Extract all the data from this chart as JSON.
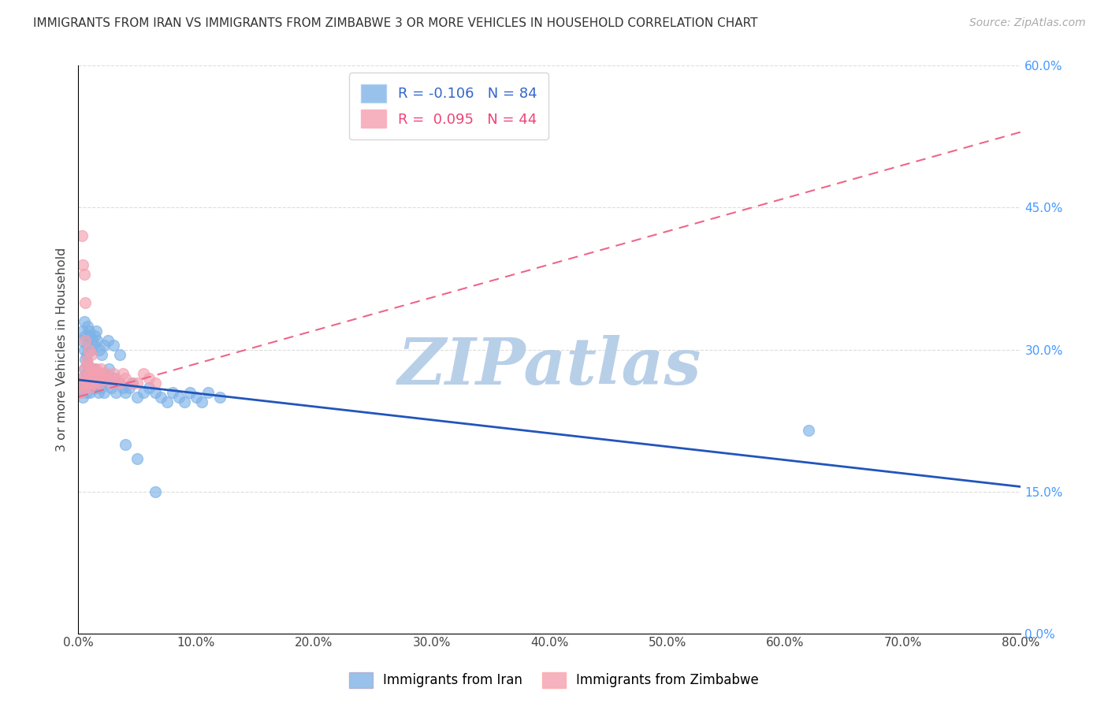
{
  "title": "IMMIGRANTS FROM IRAN VS IMMIGRANTS FROM ZIMBABWE 3 OR MORE VEHICLES IN HOUSEHOLD CORRELATION CHART",
  "source": "Source: ZipAtlas.com",
  "ylabel": "3 or more Vehicles in Household",
  "color_iran": "#7EB3E8",
  "color_zimbabwe": "#F4A0B0",
  "line_color_iran": "#2255BB",
  "line_color_zimbabwe": "#EE6688",
  "xlim": [
    0,
    0.8
  ],
  "ylim": [
    0,
    0.6
  ],
  "xticks": [
    0.0,
    0.1,
    0.2,
    0.3,
    0.4,
    0.5,
    0.6,
    0.7,
    0.8
  ],
  "yticks": [
    0.0,
    0.15,
    0.3,
    0.45,
    0.6
  ],
  "xticklabels": [
    "0.0%",
    "10.0%",
    "20.0%",
    "30.0%",
    "40.0%",
    "50.0%",
    "60.0%",
    "70.0%",
    "80.0%"
  ],
  "yticklabels_right": [
    "0.0%",
    "15.0%",
    "30.0%",
    "45.0%",
    "60.0%"
  ],
  "legend_iran_R": -0.106,
  "legend_iran_N": 84,
  "legend_iran_label": "Immigrants from Iran",
  "legend_zimbabwe_R": 0.095,
  "legend_zimbabwe_N": 44,
  "legend_zimbabwe_label": "Immigrants from Zimbabwe",
  "iran_x": [
    0.002,
    0.003,
    0.004,
    0.004,
    0.005,
    0.005,
    0.005,
    0.006,
    0.006,
    0.007,
    0.007,
    0.007,
    0.008,
    0.008,
    0.008,
    0.009,
    0.009,
    0.01,
    0.01,
    0.011,
    0.011,
    0.012,
    0.012,
    0.013,
    0.013,
    0.014,
    0.015,
    0.015,
    0.016,
    0.017,
    0.018,
    0.019,
    0.02,
    0.021,
    0.022,
    0.024,
    0.025,
    0.026,
    0.028,
    0.03,
    0.032,
    0.035,
    0.038,
    0.04,
    0.043,
    0.046,
    0.05,
    0.055,
    0.06,
    0.065,
    0.07,
    0.075,
    0.08,
    0.085,
    0.09,
    0.095,
    0.1,
    0.105,
    0.11,
    0.12,
    0.003,
    0.004,
    0.005,
    0.006,
    0.007,
    0.008,
    0.009,
    0.01,
    0.011,
    0.012,
    0.013,
    0.014,
    0.015,
    0.016,
    0.018,
    0.02,
    0.022,
    0.025,
    0.03,
    0.035,
    0.04,
    0.05,
    0.065,
    0.62
  ],
  "iran_y": [
    0.255,
    0.27,
    0.25,
    0.265,
    0.26,
    0.28,
    0.3,
    0.265,
    0.29,
    0.255,
    0.275,
    0.295,
    0.26,
    0.27,
    0.285,
    0.265,
    0.28,
    0.255,
    0.27,
    0.265,
    0.28,
    0.26,
    0.275,
    0.265,
    0.28,
    0.27,
    0.26,
    0.275,
    0.265,
    0.255,
    0.27,
    0.26,
    0.265,
    0.275,
    0.255,
    0.27,
    0.265,
    0.28,
    0.26,
    0.27,
    0.255,
    0.265,
    0.26,
    0.255,
    0.26,
    0.265,
    0.25,
    0.255,
    0.26,
    0.255,
    0.25,
    0.245,
    0.255,
    0.25,
    0.245,
    0.255,
    0.25,
    0.245,
    0.255,
    0.25,
    0.31,
    0.32,
    0.33,
    0.315,
    0.305,
    0.325,
    0.32,
    0.315,
    0.3,
    0.31,
    0.305,
    0.315,
    0.32,
    0.31,
    0.3,
    0.295,
    0.305,
    0.31,
    0.305,
    0.295,
    0.2,
    0.185,
    0.15,
    0.215
  ],
  "zimbabwe_x": [
    0.002,
    0.003,
    0.004,
    0.005,
    0.006,
    0.006,
    0.007,
    0.007,
    0.008,
    0.008,
    0.009,
    0.009,
    0.01,
    0.01,
    0.011,
    0.011,
    0.012,
    0.012,
    0.013,
    0.014,
    0.015,
    0.016,
    0.017,
    0.018,
    0.019,
    0.02,
    0.022,
    0.024,
    0.026,
    0.028,
    0.03,
    0.032,
    0.035,
    0.038,
    0.04,
    0.045,
    0.05,
    0.055,
    0.06,
    0.065,
    0.003,
    0.004,
    0.005,
    0.006
  ],
  "zimbabwe_y": [
    0.255,
    0.27,
    0.265,
    0.28,
    0.26,
    0.31,
    0.27,
    0.29,
    0.265,
    0.285,
    0.275,
    0.3,
    0.26,
    0.28,
    0.27,
    0.295,
    0.265,
    0.28,
    0.275,
    0.265,
    0.28,
    0.275,
    0.27,
    0.265,
    0.28,
    0.275,
    0.27,
    0.275,
    0.27,
    0.265,
    0.275,
    0.27,
    0.265,
    0.275,
    0.27,
    0.265,
    0.265,
    0.275,
    0.27,
    0.265,
    0.42,
    0.39,
    0.38,
    0.35
  ],
  "background_color": "#ffffff",
  "grid_color": "#dddddd",
  "watermark_text": "ZIPatlas",
  "watermark_color": "#b8cfe8"
}
